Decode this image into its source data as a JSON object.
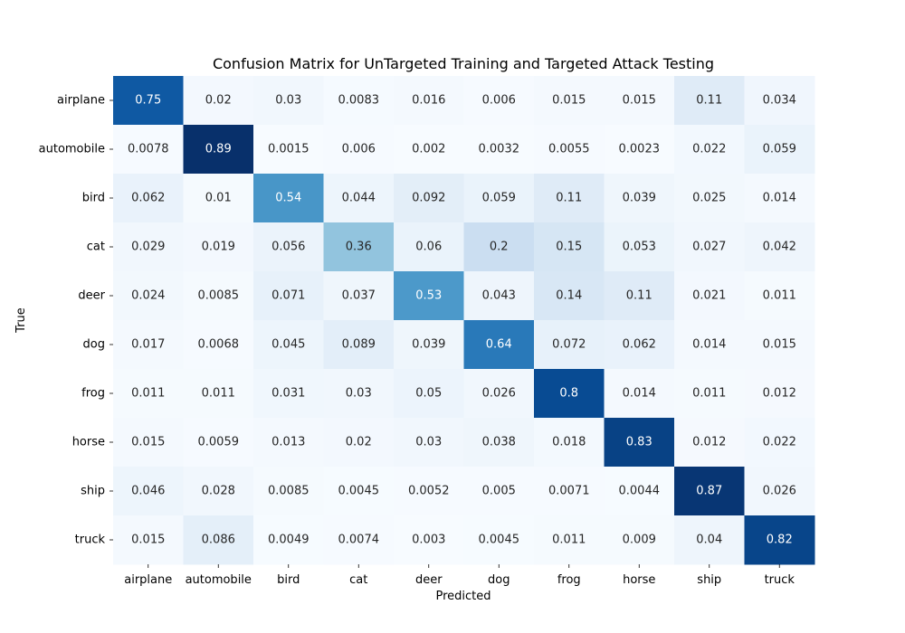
{
  "chart_data": {
    "type": "heatmap",
    "title": "Confusion Matrix for UnTargeted Training and Targeted Attack Testing",
    "xlabel": "Predicted",
    "ylabel": "True",
    "x_categories": [
      "airplane",
      "automobile",
      "bird",
      "cat",
      "deer",
      "dog",
      "frog",
      "horse",
      "ship",
      "truck"
    ],
    "y_categories": [
      "airplane",
      "automobile",
      "bird",
      "cat",
      "deer",
      "dog",
      "frog",
      "horse",
      "ship",
      "truck"
    ],
    "colormap": "Blues",
    "colorbar": false,
    "values": [
      [
        0.75,
        0.02,
        0.03,
        0.0083,
        0.016,
        0.006,
        0.015,
        0.015,
        0.11,
        0.034
      ],
      [
        0.0078,
        0.89,
        0.0015,
        0.006,
        0.002,
        0.0032,
        0.0055,
        0.0023,
        0.022,
        0.059
      ],
      [
        0.062,
        0.01,
        0.54,
        0.044,
        0.092,
        0.059,
        0.11,
        0.039,
        0.025,
        0.014
      ],
      [
        0.029,
        0.019,
        0.056,
        0.36,
        0.06,
        0.2,
        0.15,
        0.053,
        0.027,
        0.042
      ],
      [
        0.024,
        0.0085,
        0.071,
        0.037,
        0.53,
        0.043,
        0.14,
        0.11,
        0.021,
        0.011
      ],
      [
        0.017,
        0.0068,
        0.045,
        0.089,
        0.039,
        0.64,
        0.072,
        0.062,
        0.014,
        0.015
      ],
      [
        0.011,
        0.011,
        0.031,
        0.03,
        0.05,
        0.026,
        0.8,
        0.014,
        0.011,
        0.012
      ],
      [
        0.015,
        0.0059,
        0.013,
        0.02,
        0.03,
        0.038,
        0.018,
        0.83,
        0.012,
        0.022
      ],
      [
        0.046,
        0.028,
        0.0085,
        0.0045,
        0.0052,
        0.005,
        0.0071,
        0.0044,
        0.87,
        0.026
      ],
      [
        0.015,
        0.086,
        0.0049,
        0.0074,
        0.003,
        0.0045,
        0.011,
        0.009,
        0.04,
        0.82
      ]
    ],
    "value_labels": [
      [
        "0.75",
        "0.02",
        "0.03",
        "0.0083",
        "0.016",
        "0.006",
        "0.015",
        "0.015",
        "0.11",
        "0.034"
      ],
      [
        "0.0078",
        "0.89",
        "0.0015",
        "0.006",
        "0.002",
        "0.0032",
        "0.0055",
        "0.0023",
        "0.022",
        "0.059"
      ],
      [
        "0.062",
        "0.01",
        "0.54",
        "0.044",
        "0.092",
        "0.059",
        "0.11",
        "0.039",
        "0.025",
        "0.014"
      ],
      [
        "0.029",
        "0.019",
        "0.056",
        "0.36",
        "0.06",
        "0.2",
        "0.15",
        "0.053",
        "0.027",
        "0.042"
      ],
      [
        "0.024",
        "0.0085",
        "0.071",
        "0.037",
        "0.53",
        "0.043",
        "0.14",
        "0.11",
        "0.021",
        "0.011"
      ],
      [
        "0.017",
        "0.0068",
        "0.045",
        "0.089",
        "0.039",
        "0.64",
        "0.072",
        "0.062",
        "0.014",
        "0.015"
      ],
      [
        "0.011",
        "0.011",
        "0.031",
        "0.03",
        "0.05",
        "0.026",
        "0.8",
        "0.014",
        "0.011",
        "0.012"
      ],
      [
        "0.015",
        "0.0059",
        "0.013",
        "0.02",
        "0.03",
        "0.038",
        "0.018",
        "0.83",
        "0.012",
        "0.022"
      ],
      [
        "0.046",
        "0.028",
        "0.0085",
        "0.0045",
        "0.0052",
        "0.005",
        "0.0071",
        "0.0044",
        "0.87",
        "0.026"
      ],
      [
        "0.015",
        "0.086",
        "0.0049",
        "0.0074",
        "0.003",
        "0.0045",
        "0.011",
        "0.009",
        "0.04",
        "0.82"
      ]
    ]
  }
}
